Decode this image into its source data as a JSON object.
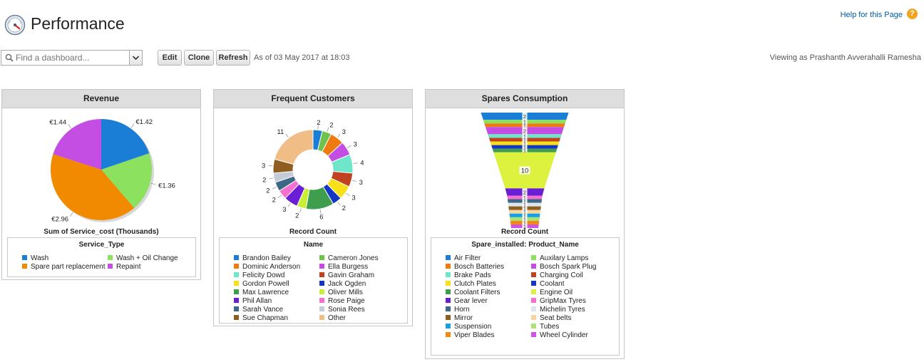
{
  "header": {
    "title": "Performance",
    "help_label": "Help for this Page",
    "help_icon": "question-icon"
  },
  "toolbar": {
    "search_placeholder": "Find a dashboard...",
    "edit_label": "Edit",
    "clone_label": "Clone",
    "refresh_label": "Refresh",
    "as_of": "As of 03 May 2017 at 18:03",
    "viewing_as": "Viewing as Prashanth Avverahalli Ramesha"
  },
  "colors": {
    "header_bg": "#dedede",
    "link": "#015ba7",
    "help_icon": "#f1a321"
  },
  "chart_data": [
    {
      "type": "pie",
      "title": "Revenue",
      "xlabel": "Sum of Service_cost (Thousands)",
      "legend_title": "Service_Type",
      "legend_placement": "bottom",
      "series": [
        {
          "name": "Wash",
          "value": 1.42,
          "label": "€1.42",
          "color": "#1b7ed6"
        },
        {
          "name": "Wash + Oil Change",
          "value": 1.36,
          "label": "€1.36",
          "color": "#8ce15f"
        },
        {
          "name": "Spare part replacement",
          "value": 2.96,
          "label": "€2.96",
          "color": "#f28a00"
        },
        {
          "name": "Repaint",
          "value": 1.44,
          "label": "€1.44",
          "color": "#c44ee4"
        }
      ]
    },
    {
      "type": "pie",
      "subtype": "donut",
      "title": "Frequent Customers",
      "xlabel": "Record Count",
      "legend_title": "Name",
      "legend_placement": "bottom",
      "series": [
        {
          "name": "Brandon Bailey",
          "value": 2,
          "color": "#1b7ed6"
        },
        {
          "name": "Cameron Jones",
          "value": 2,
          "color": "#6ec34d"
        },
        {
          "name": "Dominic Anderson",
          "value": 3,
          "color": "#ef7a10"
        },
        {
          "name": "Ella Burgess",
          "value": 3,
          "color": "#c44ee4"
        },
        {
          "name": "Felicity Dowd",
          "value": 4,
          "color": "#6de6c9"
        },
        {
          "name": "Gavin Graham",
          "value": 3,
          "color": "#c2421f"
        },
        {
          "name": "Gordon Powell",
          "value": 3,
          "color": "#f7e018"
        },
        {
          "name": "Jack Ogden",
          "value": 2,
          "color": "#1336c3"
        },
        {
          "name": "Max Lawrence",
          "value": 6,
          "color": "#3e9e4d"
        },
        {
          "name": "Oliver Mills",
          "value": 2,
          "color": "#c9ee37"
        },
        {
          "name": "Phil Allan",
          "value": 3,
          "color": "#6a1fd5"
        },
        {
          "name": "Rose Paige",
          "value": 2,
          "color": "#f46fcf"
        },
        {
          "name": "Sarah Vance",
          "value": 2,
          "color": "#3d6787"
        },
        {
          "name": "Sonia Rees",
          "value": 2,
          "color": "#c4ccd8"
        },
        {
          "name": "Sue Chapman",
          "value": 3,
          "color": "#8e5e21"
        },
        {
          "name": "Other",
          "value": 11,
          "color": "#f1bd86"
        }
      ]
    },
    {
      "type": "funnel",
      "title": "Spares Consumption",
      "xlabel": "Record Count",
      "legend_title": "Spare_installed: Product_Name",
      "legend_placement": "bottom",
      "series": [
        {
          "name": "Air Filter",
          "value": 2,
          "label": "2",
          "color": "#1b7ed6"
        },
        {
          "name": "Auxilary Lamps",
          "value": 1,
          "label": "1",
          "color": "#8ce15f"
        },
        {
          "name": "Bosch Batteries",
          "value": 1,
          "label": "1",
          "color": "#ef7a10"
        },
        {
          "name": "Bosch Spark Plug",
          "value": 2,
          "label": "2",
          "color": "#c44ee4"
        },
        {
          "name": "Brake Pads",
          "value": 1,
          "label": "1",
          "color": "#6de6c9"
        },
        {
          "name": "Charging Coil",
          "value": 1,
          "label": "1",
          "color": "#c2421f"
        },
        {
          "name": "Clutch Plates",
          "value": 1,
          "label": "1",
          "color": "#f7e018"
        },
        {
          "name": "Coolant",
          "value": 1,
          "label": "1",
          "color": "#1336c3"
        },
        {
          "name": "Coolant Filters",
          "value": 1,
          "label": "1",
          "color": "#3e9e4d"
        },
        {
          "name": "Engine Oil",
          "value": 10,
          "label": "10",
          "color": "#dcf23e"
        },
        {
          "name": "Gear lever",
          "value": 2,
          "label": "2",
          "color": "#6a1fd5"
        },
        {
          "name": "GripMax Tyres",
          "value": 1,
          "label": "1",
          "color": "#f46fcf"
        },
        {
          "name": "Horn",
          "value": 1,
          "label": "1",
          "color": "#3d6787"
        },
        {
          "name": "Michelin Tyres",
          "value": 1,
          "label": "1",
          "color": "#dde6ee"
        },
        {
          "name": "Mirror",
          "value": 1,
          "label": "1",
          "color": "#8e5e21"
        },
        {
          "name": "Seat belts",
          "value": 1,
          "label": "1",
          "color": "#f7d79e"
        },
        {
          "name": "Suspension",
          "value": 1,
          "label": "1",
          "color": "#1a9fe6"
        },
        {
          "name": "Tubes",
          "value": 1,
          "label": "1",
          "color": "#a8e474"
        },
        {
          "name": "Viper Blades",
          "value": 1,
          "label": "1",
          "color": "#f08a12"
        },
        {
          "name": "Wheel Cylinder",
          "value": 1,
          "label": "1",
          "color": "#cc55e8"
        }
      ]
    }
  ]
}
